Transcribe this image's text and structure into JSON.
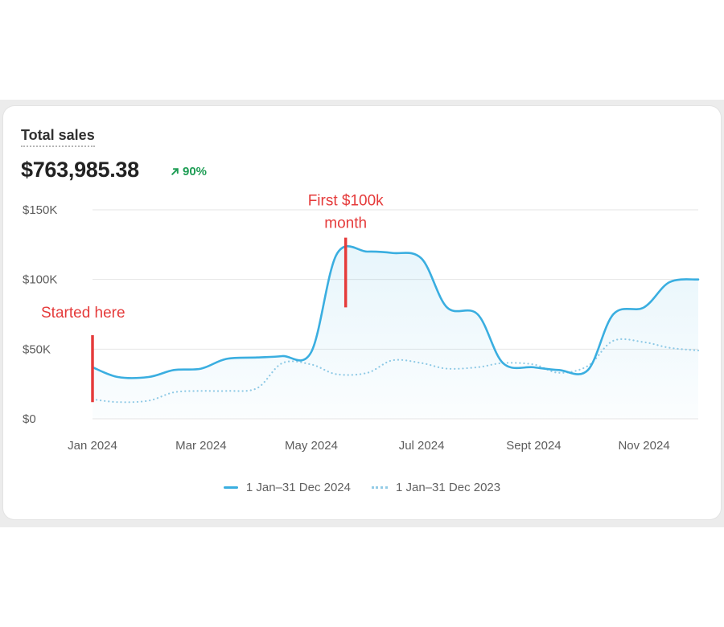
{
  "card": {
    "title": "Total sales",
    "total": "$763,985.38",
    "change": "90%",
    "change_icon": "arrow-up-right-icon",
    "accent": "#3aaee0",
    "accent_light": "#93cbe6",
    "change_color": "#1f9d55",
    "annotation_color": "#e53b3b"
  },
  "chart_data": {
    "type": "area",
    "title": "Total sales",
    "x_labels": [
      "Jan 2024",
      "Mar 2024",
      "May 2024",
      "Jul 2024",
      "Sept 2024",
      "Nov 2024"
    ],
    "x": [
      "2024-01-01",
      "2024-01-15",
      "2024-02-01",
      "2024-02-15",
      "2024-03-01",
      "2024-03-15",
      "2024-04-01",
      "2024-04-15",
      "2024-05-01",
      "2024-05-15",
      "2024-06-01",
      "2024-06-15",
      "2024-07-01",
      "2024-07-15",
      "2024-08-01",
      "2024-08-15",
      "2024-09-01",
      "2024-09-15",
      "2024-10-01",
      "2024-10-15",
      "2024-11-01",
      "2024-11-15",
      "2024-12-01"
    ],
    "series": [
      {
        "name": "1 Jan–31 Dec 2024",
        "style": "solid",
        "color": "#3aaee0",
        "filled": true,
        "values": [
          37000,
          30000,
          30000,
          35000,
          36000,
          43000,
          44000,
          45000,
          48000,
          118000,
          120000,
          119000,
          115000,
          80000,
          75000,
          40000,
          37000,
          35000,
          35000,
          75000,
          80000,
          98000,
          100000
        ]
      },
      {
        "name": "1 Jan–31 Dec 2023",
        "style": "dotted",
        "color": "#93cbe6",
        "filled": false,
        "values": [
          14000,
          12000,
          13000,
          19000,
          20000,
          20000,
          22000,
          40000,
          39000,
          32000,
          33000,
          42000,
          40000,
          36000,
          37000,
          40000,
          39000,
          33000,
          38000,
          56000,
          55000,
          51000,
          49000
        ]
      }
    ],
    "y_ticks": [
      "$0",
      "$50K",
      "$100K",
      "$150K"
    ],
    "ylim": [
      0,
      150000
    ],
    "grid": true,
    "legend": "bottom-center",
    "annotations": [
      {
        "text": "Started here",
        "x": "2024-01-01",
        "y_from": 12000,
        "y_to": 60000
      },
      {
        "text_lines": [
          "First $100k",
          "month"
        ],
        "x": "2024-05-20",
        "y_from": 80000,
        "y_to": 130000
      }
    ]
  }
}
